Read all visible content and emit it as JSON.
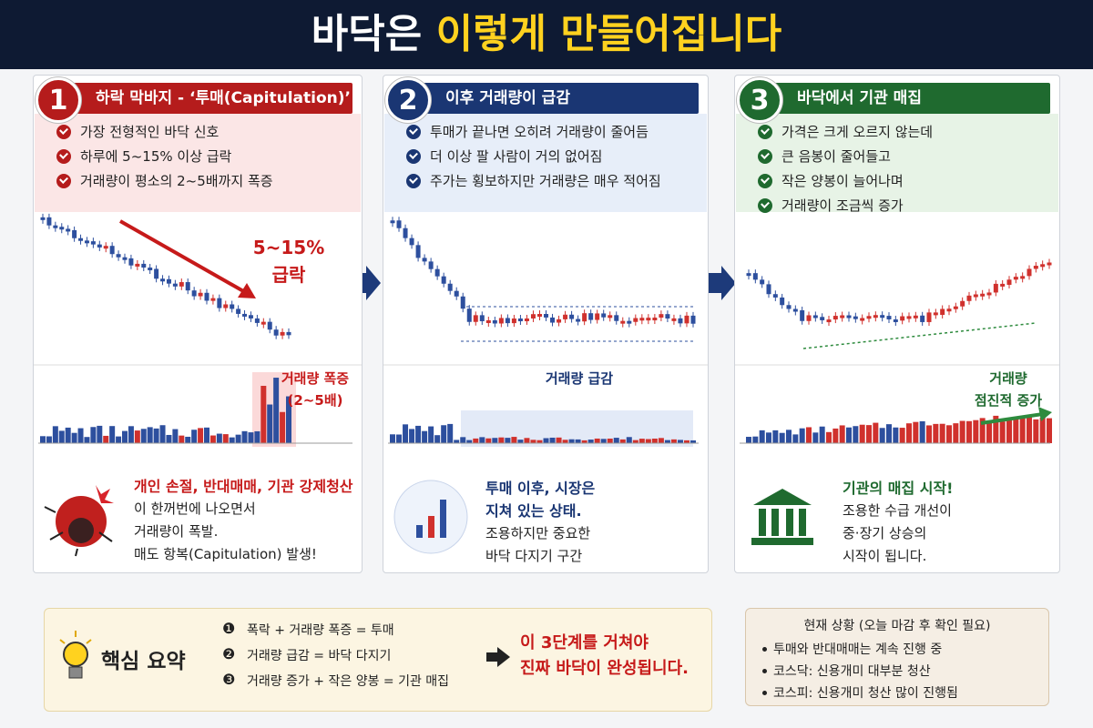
{
  "header": {
    "title_lead": "바닥은",
    "title_highlight": "이렇게 만들어집니다"
  },
  "stages": [
    {
      "number": "1",
      "heading": "하락 막바지 - ‘투매(Capitulation)’",
      "bullets": [
        "가장 전형적인 바닥 신호",
        "하루에 5~15% 이상 급락",
        "거래량이 평소의 2~5배까지 폭증"
      ],
      "chart_annotation": [
        "5~15%",
        "급락"
      ],
      "volume_annotation": [
        "거래량 폭증",
        "(2~5배)"
      ],
      "caption_highlight": [
        "개인 손절, 반대매매, 기관 강제청산"
      ],
      "caption_lines": [
        "이 한꺼번에 나오면서",
        "거래량이 폭발.",
        "매도 항복(Capitulation) 발생!"
      ]
    },
    {
      "number": "2",
      "heading": "이후 거래량이 급감",
      "bullets": [
        "투매가 끝나면 오히려 거래량이 줄어듬",
        "더 이상 팔 사람이 거의 없어짐",
        "주가는 횡보하지만 거래량은 매우 적어짐"
      ],
      "volume_annotation": [
        "거래량 급감"
      ],
      "caption_highlight": [
        "투매 이후, 시장은",
        "지쳐 있는 상태."
      ],
      "caption_lines": [
        "조용하지만 중요한",
        "바닥 다지기 구간"
      ]
    },
    {
      "number": "3",
      "heading": "바닥에서 기관 매집",
      "bullets": [
        "가격은 크게 오르지 않는데",
        "큰 음봉이 줄어들고",
        "작은 양봉이 늘어나며",
        "거래량이 조금씩 증가"
      ],
      "volume_annotation": [
        "거래량",
        "점진적 증가"
      ],
      "caption_highlight": [
        "기관의 매집 시작!"
      ],
      "caption_lines": [
        "조용한 수급 개선이",
        "중·장기 상승의",
        "시작이 됩니다."
      ]
    }
  ],
  "summary": {
    "title": "핵심 요약",
    "items": [
      {
        "number": "❶",
        "text": "폭락 + 거래량 폭증 = 투매"
      },
      {
        "number": "❷",
        "text": "거래량 급감 = 바닥 다지기"
      },
      {
        "number": "❸",
        "text": "거래량 증가 + 작은 양봉 = 기관 매집"
      }
    ],
    "conclusion": [
      "이 3단계를 거쳐야",
      "진짜 바닥이 완성됩니다."
    ]
  },
  "status": {
    "title": "현재 상황 (오늘 마감 후 확인 필요)",
    "items": [
      "투매와 반대매매는 계속 진행 중",
      "코스닥: 신용개미 대부분 청산",
      "코스피: 신용개미 청산 많이 진행됨"
    ]
  }
}
